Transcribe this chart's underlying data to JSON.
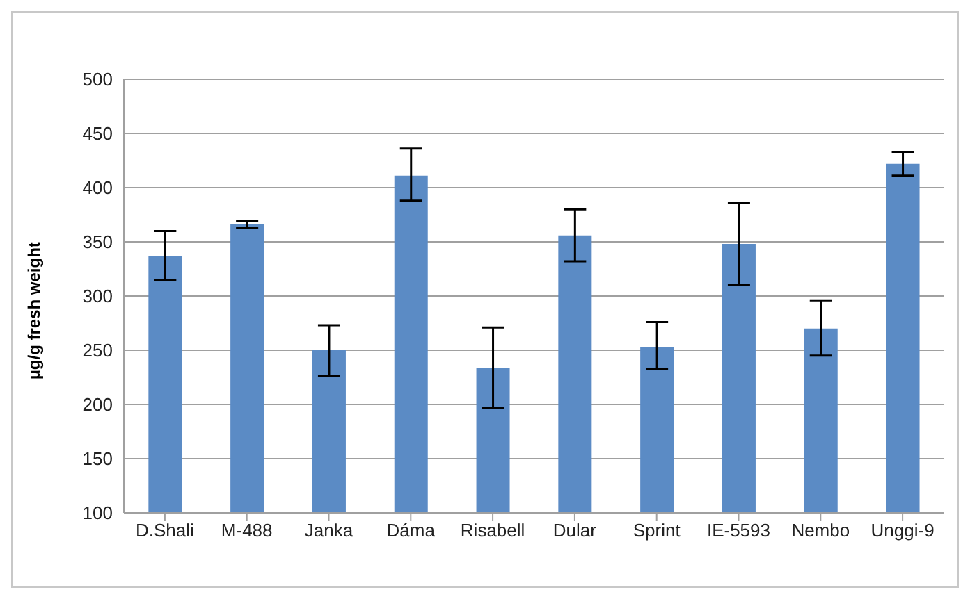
{
  "chart_data": {
    "type": "bar",
    "ylabel": "µg/g fresh weight",
    "categories": [
      "D.Shali",
      "M-488",
      "Janka",
      "Dáma",
      "Risabell",
      "Dular",
      "Sprint",
      "IE-5593",
      "Nembo",
      "Unggi-9"
    ],
    "values": [
      337,
      366,
      250,
      411,
      234,
      356,
      253,
      348,
      270,
      422
    ],
    "errors": [
      [
        315,
        360
      ],
      [
        363,
        369
      ],
      [
        226,
        273
      ],
      [
        388,
        436
      ],
      [
        197,
        271
      ],
      [
        332,
        380
      ],
      [
        233,
        276
      ],
      [
        310,
        386
      ],
      [
        245,
        296
      ],
      [
        411,
        433
      ]
    ],
    "color": "#5b8bc5",
    "ylim": [
      100,
      500
    ],
    "yticks": [
      100,
      150,
      200,
      250,
      300,
      350,
      400,
      450,
      500
    ],
    "grid": "y"
  }
}
